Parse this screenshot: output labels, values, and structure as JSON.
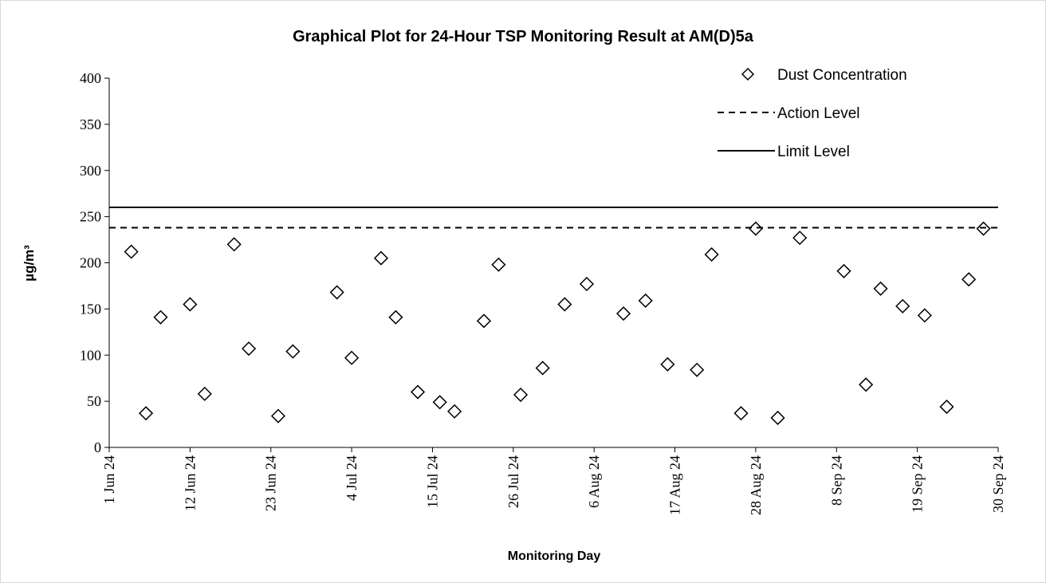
{
  "chart_data": {
    "type": "scatter",
    "title": "Graphical Plot for 24-Hour TSP Monitoring Result at AM(D)5a",
    "x_label": "Monitoring Day",
    "y_label": "µg/m³",
    "legend_position": "upper right",
    "xlim": [
      "2024-06-01",
      "2024-09-30"
    ],
    "xticks": [
      {
        "value": "2024-06-01",
        "label": "1 Jun 24"
      },
      {
        "value": "2024-06-12",
        "label": "12 Jun 24"
      },
      {
        "value": "2024-06-23",
        "label": "23 Jun 24"
      },
      {
        "value": "2024-07-04",
        "label": "4 Jul 24"
      },
      {
        "value": "2024-07-15",
        "label": "15 Jul 24"
      },
      {
        "value": "2024-07-26",
        "label": "26 Jul 24"
      },
      {
        "value": "2024-08-06",
        "label": "6 Aug 24"
      },
      {
        "value": "2024-08-17",
        "label": "17 Aug 24"
      },
      {
        "value": "2024-08-28",
        "label": "28 Aug 24"
      },
      {
        "value": "2024-09-08",
        "label": "8 Sep 24"
      },
      {
        "value": "2024-09-19",
        "label": "19 Sep 24"
      },
      {
        "value": "2024-09-30",
        "label": "30 Sep 24"
      }
    ],
    "ylim": [
      0,
      400
    ],
    "yticks": [
      0,
      50,
      100,
      150,
      200,
      250,
      300,
      350,
      400
    ],
    "x": [
      "2024-06-04",
      "2024-06-06",
      "2024-06-08",
      "2024-06-12",
      "2024-06-14",
      "2024-06-18",
      "2024-06-20",
      "2024-06-24",
      "2024-06-26",
      "2024-07-02",
      "2024-07-04",
      "2024-07-08",
      "2024-07-10",
      "2024-07-13",
      "2024-07-16",
      "2024-07-18",
      "2024-07-22",
      "2024-07-24",
      "2024-07-27",
      "2024-07-30",
      "2024-08-02",
      "2024-08-05",
      "2024-08-10",
      "2024-08-13",
      "2024-08-16",
      "2024-08-20",
      "2024-08-22",
      "2024-08-26",
      "2024-08-28",
      "2024-08-31",
      "2024-09-03",
      "2024-09-09",
      "2024-09-12",
      "2024-09-14",
      "2024-09-17",
      "2024-09-20",
      "2024-09-23",
      "2024-09-26",
      "2024-09-28"
    ],
    "series": [
      {
        "name": "Dust Concentration",
        "color": "#000000",
        "marker": "diamond",
        "values": [
          212,
          37,
          141,
          155,
          58,
          220,
          107,
          34,
          104,
          168,
          97,
          205,
          141,
          60,
          49,
          39,
          137,
          198,
          57,
          86,
          155,
          177,
          145,
          159,
          90,
          84,
          209,
          37,
          237,
          32,
          227,
          191,
          68,
          172,
          153,
          143,
          44,
          182,
          237
        ]
      },
      {
        "name": "Action Level",
        "color": "#000000",
        "line_style": "dashed",
        "value": 238
      },
      {
        "name": "Limit Level",
        "color": "#000000",
        "line_style": "solid",
        "value": 260
      }
    ]
  }
}
